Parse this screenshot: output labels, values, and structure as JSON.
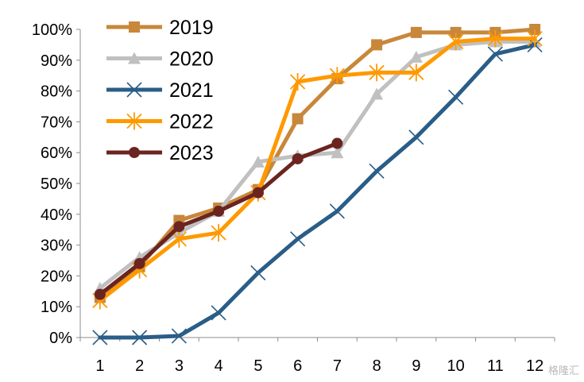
{
  "chart_data": {
    "type": "line",
    "title": "",
    "xlabel": "",
    "ylabel": "",
    "x": [
      1,
      2,
      3,
      4,
      5,
      6,
      7,
      8,
      9,
      10,
      11,
      12
    ],
    "x_tick_labels": [
      "1",
      "2",
      "3",
      "4",
      "5",
      "6",
      "7",
      "8",
      "9",
      "10",
      "11",
      "12"
    ],
    "ylim": [
      0,
      100
    ],
    "y_ticks": [
      0,
      10,
      20,
      30,
      40,
      50,
      60,
      70,
      80,
      90,
      100
    ],
    "y_tick_labels": [
      "0%",
      "10%",
      "20%",
      "30%",
      "40%",
      "50%",
      "60%",
      "70%",
      "80%",
      "90%",
      "100%"
    ],
    "grid": false,
    "legend_position": "top-left",
    "series": [
      {
        "name": "2019",
        "color": "#C8873A",
        "marker": "square",
        "values": [
          13,
          23,
          38,
          42,
          48,
          71,
          84,
          95,
          99,
          99,
          99,
          100
        ]
      },
      {
        "name": "2020",
        "color": "#C0C0C0",
        "marker": "triangle",
        "values": [
          16,
          26,
          34,
          41,
          57,
          59,
          60,
          79,
          91,
          95,
          96,
          96
        ]
      },
      {
        "name": "2021",
        "color": "#2A5D87",
        "marker": "x",
        "values": [
          0,
          0,
          0.5,
          8,
          21,
          32,
          41,
          54,
          65,
          78,
          92,
          95
        ]
      },
      {
        "name": "2022",
        "color": "#FF9900",
        "marker": "asterisk",
        "values": [
          12,
          22,
          32,
          34,
          47,
          83,
          85,
          86,
          86,
          96,
          97,
          97
        ]
      },
      {
        "name": "2023",
        "color": "#6B2420",
        "marker": "circle",
        "values": [
          14,
          24,
          36,
          41,
          47,
          58,
          63,
          null,
          null,
          null,
          null,
          null
        ]
      }
    ]
  },
  "watermark": "格隆汇"
}
